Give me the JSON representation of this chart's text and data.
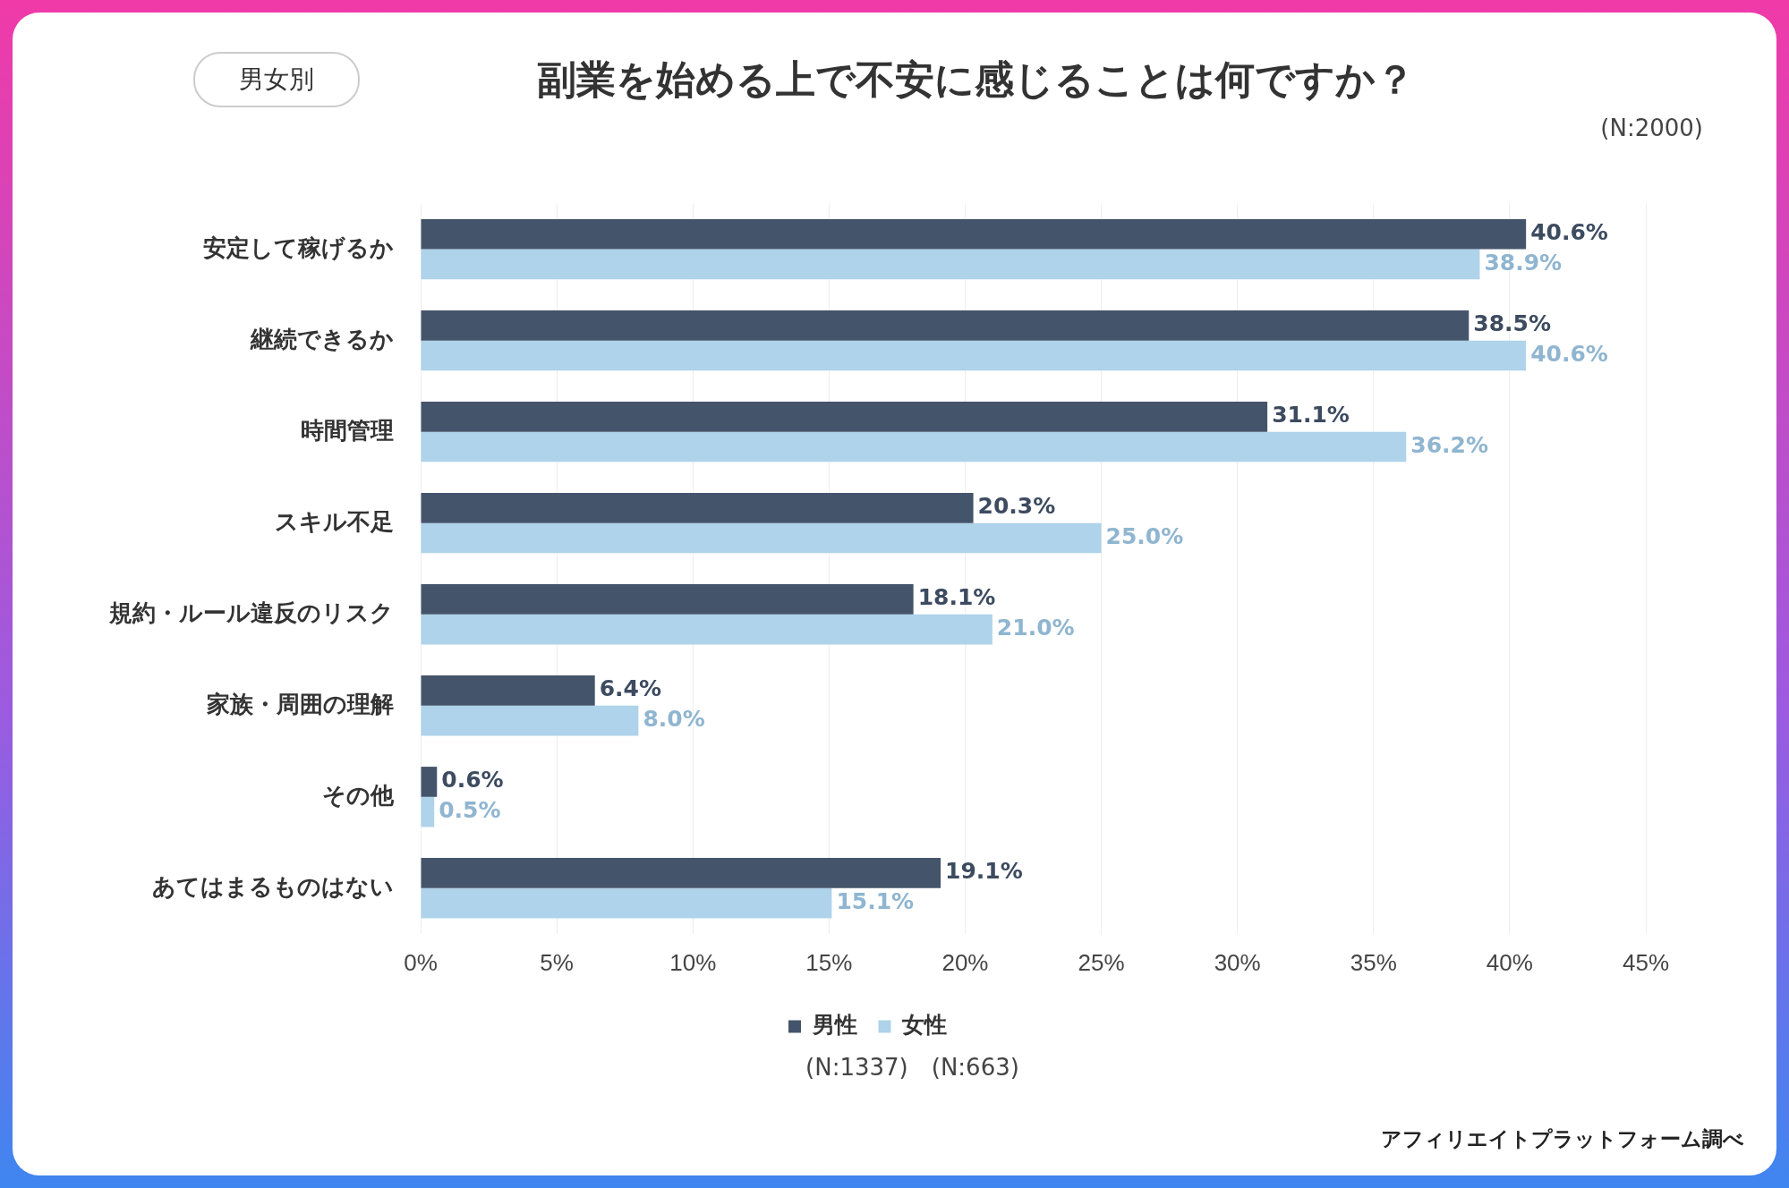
{
  "chart_data": {
    "type": "bar",
    "orientation": "horizontal",
    "title": "副業を始める上で不安に感じることは何ですか？",
    "categories": [
      "安定して稼げるか",
      "継続できるか",
      "時間管理",
      "スキル不足",
      "規約・ルール違反のリスク",
      "家族・周囲の理解",
      "その他",
      "あてはまるものはない"
    ],
    "series": [
      {
        "name": "男性",
        "color": "#44546a",
        "values": [
          40.6,
          38.5,
          31.1,
          20.3,
          18.1,
          6.4,
          0.6,
          19.1
        ],
        "value_labels": [
          "40.6%",
          "38.5%",
          "31.1%",
          "20.3%",
          "18.1%",
          "6.4%",
          "0.6%",
          "19.1%"
        ]
      },
      {
        "name": "女性",
        "color": "#aed3ea",
        "values": [
          38.9,
          40.6,
          36.2,
          25.0,
          21.0,
          8.0,
          0.5,
          15.1
        ],
        "value_labels": [
          "38.9%",
          "40.6%",
          "36.2%",
          "25.0%",
          "21.0%",
          "8.0%",
          "0.5%",
          "15.1%"
        ]
      }
    ],
    "xlim": [
      0,
      45
    ],
    "xticks": [
      {
        "value": 0,
        "label": "0%"
      },
      {
        "value": 5,
        "label": "5%"
      },
      {
        "value": 10,
        "label": "10%"
      },
      {
        "value": 15,
        "label": "15%"
      },
      {
        "value": 20,
        "label": "20%"
      },
      {
        "value": 25,
        "label": "25%"
      },
      {
        "value": 30,
        "label": "30%"
      },
      {
        "value": 35,
        "label": "35%"
      },
      {
        "value": 40,
        "label": "40%"
      },
      {
        "value": 45,
        "label": "45%"
      }
    ],
    "grid": "x",
    "legend": "bottom",
    "annotations": [
      "男女別",
      "(N:2000)",
      "(N:1337)　(N:663)",
      "アフィリエイトプラットフォーム調べ"
    ]
  }
}
